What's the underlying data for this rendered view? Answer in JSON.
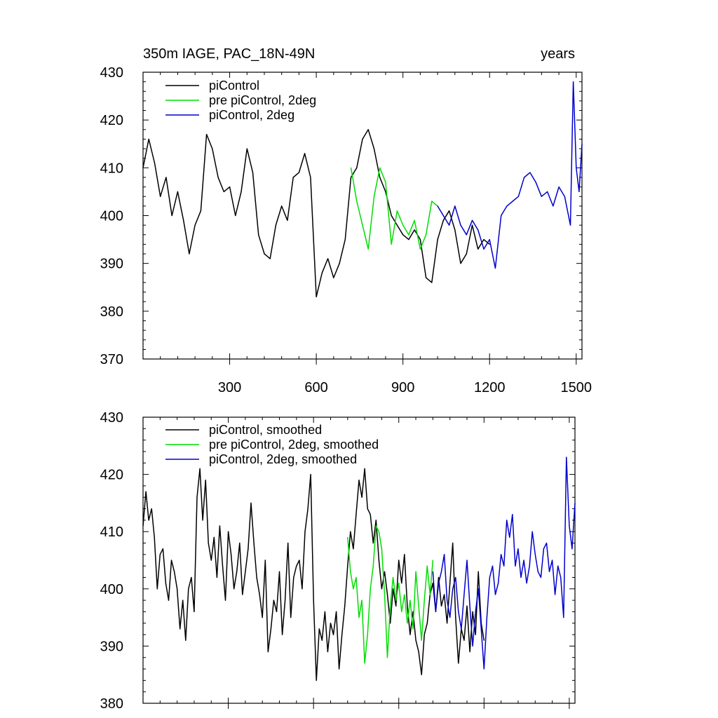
{
  "chart_data": [
    {
      "type": "line",
      "title": "350m IAGE, PAC_18N-49N",
      "subtitle": "years",
      "xlabel": "",
      "ylabel": "",
      "xlim": [
        0,
        1520
      ],
      "ylim": [
        370,
        430
      ],
      "yticks": [
        370,
        380,
        390,
        400,
        410,
        420,
        430
      ],
      "xticks": [
        300,
        600,
        900,
        1200,
        1500
      ],
      "legend": [
        "piControl",
        "pre piControl, 2deg",
        "piControl, 2deg"
      ],
      "series": [
        {
          "name": "piControl",
          "color": "#000000",
          "x": [
            0,
            20,
            40,
            60,
            80,
            100,
            120,
            140,
            160,
            180,
            200,
            220,
            240,
            260,
            280,
            300,
            320,
            340,
            360,
            380,
            400,
            420,
            440,
            460,
            480,
            500,
            520,
            540,
            560,
            580,
            600,
            620,
            640,
            660,
            680,
            700,
            720,
            740,
            760,
            780,
            800,
            820,
            840,
            860,
            880,
            900,
            920,
            940,
            960,
            980,
            1000,
            1020,
            1040,
            1060,
            1080,
            1100,
            1120,
            1140,
            1160,
            1180,
            1200
          ],
          "values": [
            410,
            416,
            411,
            404,
            408,
            400,
            405,
            399,
            392,
            398,
            401,
            417,
            414,
            408,
            405,
            406,
            400,
            405,
            414,
            409,
            396,
            392,
            391,
            398,
            402,
            399,
            408,
            409,
            413,
            408,
            383,
            388,
            391,
            387,
            390,
            395,
            408,
            410,
            416,
            418,
            414,
            408,
            405,
            400,
            398,
            396,
            395,
            397,
            395,
            387,
            386,
            395,
            399,
            401,
            397,
            390,
            392,
            398,
            393,
            395,
            394
          ]
        },
        {
          "name": "pre piControl, 2deg",
          "color": "#00dd00",
          "x": [
            720,
            740,
            760,
            780,
            800,
            820,
            840,
            860,
            880,
            900,
            920,
            940,
            960,
            980,
            1000,
            1020
          ],
          "values": [
            410,
            403,
            398,
            393,
            404,
            410,
            407,
            394,
            401,
            398,
            396,
            399,
            393,
            396,
            403,
            402
          ]
        },
        {
          "name": "piControl, 2deg",
          "color": "#0000cc",
          "x": [
            1020,
            1040,
            1060,
            1080,
            1100,
            1120,
            1140,
            1160,
            1180,
            1200,
            1220,
            1240,
            1260,
            1280,
            1300,
            1320,
            1340,
            1360,
            1380,
            1400,
            1420,
            1440,
            1460,
            1480,
            1490,
            1500,
            1510,
            1520
          ],
          "values": [
            402,
            400,
            398,
            402,
            398,
            396,
            399,
            397,
            393,
            395,
            389,
            400,
            402,
            403,
            404,
            408,
            409,
            407,
            404,
            405,
            402,
            406,
            404,
            398,
            428,
            410,
            405,
            415
          ]
        }
      ]
    },
    {
      "type": "line",
      "title": "",
      "xlabel": "",
      "ylabel": "",
      "xlim": [
        0,
        1520
      ],
      "ylim": [
        380,
        430
      ],
      "yticks": [
        380,
        390,
        400,
        410,
        420,
        430
      ],
      "legend": [
        "piControl, smoothed",
        "pre piControl, 2deg, smoothed",
        "piControl, 2deg, smoothed"
      ],
      "series": [
        {
          "name": "piControl, smoothed",
          "color": "#000000",
          "x": [
            0,
            10,
            20,
            30,
            40,
            50,
            60,
            70,
            80,
            90,
            100,
            110,
            120,
            130,
            140,
            150,
            160,
            170,
            180,
            190,
            200,
            210,
            220,
            230,
            240,
            250,
            260,
            270,
            280,
            290,
            300,
            310,
            320,
            330,
            340,
            350,
            360,
            370,
            380,
            390,
            400,
            410,
            420,
            430,
            440,
            450,
            460,
            470,
            480,
            490,
            500,
            510,
            520,
            530,
            540,
            550,
            560,
            570,
            580,
            590,
            600,
            610,
            620,
            630,
            640,
            650,
            660,
            670,
            680,
            690,
            700,
            710,
            720,
            730,
            740,
            750,
            760,
            770,
            780,
            790,
            800,
            810,
            820,
            830,
            840,
            850,
            860,
            870,
            880,
            890,
            900,
            910,
            920,
            930,
            940,
            950,
            960,
            970,
            980,
            990,
            1000,
            1010,
            1020,
            1030,
            1040,
            1050,
            1060,
            1070,
            1080,
            1090,
            1100,
            1110,
            1120,
            1130,
            1140,
            1150,
            1160,
            1170,
            1180,
            1190,
            1200
          ],
          "values": [
            411,
            417,
            412,
            414,
            409,
            400,
            406,
            407,
            401,
            398,
            405,
            403,
            400,
            393,
            398,
            391,
            400,
            402,
            396,
            416,
            421,
            412,
            419,
            408,
            405,
            409,
            402,
            411,
            404,
            398,
            410,
            406,
            400,
            403,
            408,
            399,
            403,
            407,
            415,
            408,
            402,
            399,
            395,
            405,
            389,
            393,
            398,
            396,
            403,
            392,
            398,
            408,
            395,
            402,
            404,
            405,
            400,
            410,
            414,
            420,
            398,
            384,
            393,
            391,
            396,
            389,
            394,
            392,
            396,
            386,
            392,
            397,
            404,
            410,
            407,
            413,
            419,
            416,
            421,
            414,
            413,
            408,
            412,
            405,
            400,
            403,
            399,
            394,
            400,
            397,
            405,
            401,
            406,
            397,
            392,
            396,
            391,
            389,
            385,
            392,
            394,
            399,
            401,
            396,
            402,
            397,
            399,
            394,
            401,
            408,
            395,
            387,
            393,
            391,
            397,
            389,
            396,
            392,
            403,
            394,
            391
          ]
        },
        {
          "name": "pre piControl, 2deg, smoothed",
          "color": "#00dd00",
          "x": [
            720,
            730,
            740,
            750,
            760,
            770,
            780,
            790,
            800,
            810,
            820,
            830,
            840,
            850,
            860,
            870,
            880,
            890,
            900,
            910,
            920,
            930,
            940,
            950,
            960,
            970,
            980,
            990,
            1000,
            1010,
            1020
          ],
          "values": [
            409,
            403,
            400,
            402,
            395,
            398,
            387,
            392,
            400,
            404,
            411,
            410,
            407,
            399,
            388,
            397,
            402,
            398,
            401,
            396,
            399,
            394,
            398,
            393,
            403,
            397,
            391,
            398,
            404,
            399,
            405
          ]
        },
        {
          "name": "piControl, 2deg, smoothed",
          "color": "#0000cc",
          "x": [
            1020,
            1030,
            1040,
            1050,
            1060,
            1070,
            1080,
            1090,
            1100,
            1110,
            1120,
            1130,
            1140,
            1150,
            1160,
            1170,
            1180,
            1190,
            1200,
            1210,
            1220,
            1230,
            1240,
            1250,
            1260,
            1270,
            1280,
            1290,
            1300,
            1310,
            1320,
            1330,
            1340,
            1350,
            1360,
            1370,
            1380,
            1390,
            1400,
            1410,
            1420,
            1430,
            1440,
            1450,
            1460,
            1470,
            1480,
            1490,
            1500,
            1510,
            1520
          ],
          "values": [
            403,
            396,
            401,
            403,
            406,
            398,
            395,
            400,
            402,
            396,
            393,
            399,
            405,
            397,
            390,
            396,
            400,
            393,
            386,
            395,
            402,
            404,
            399,
            401,
            406,
            404,
            412,
            409,
            413,
            404,
            407,
            402,
            405,
            401,
            404,
            410,
            406,
            403,
            402,
            407,
            408,
            403,
            405,
            399,
            404,
            402,
            395,
            423,
            411,
            407,
            415
          ]
        }
      ]
    }
  ]
}
